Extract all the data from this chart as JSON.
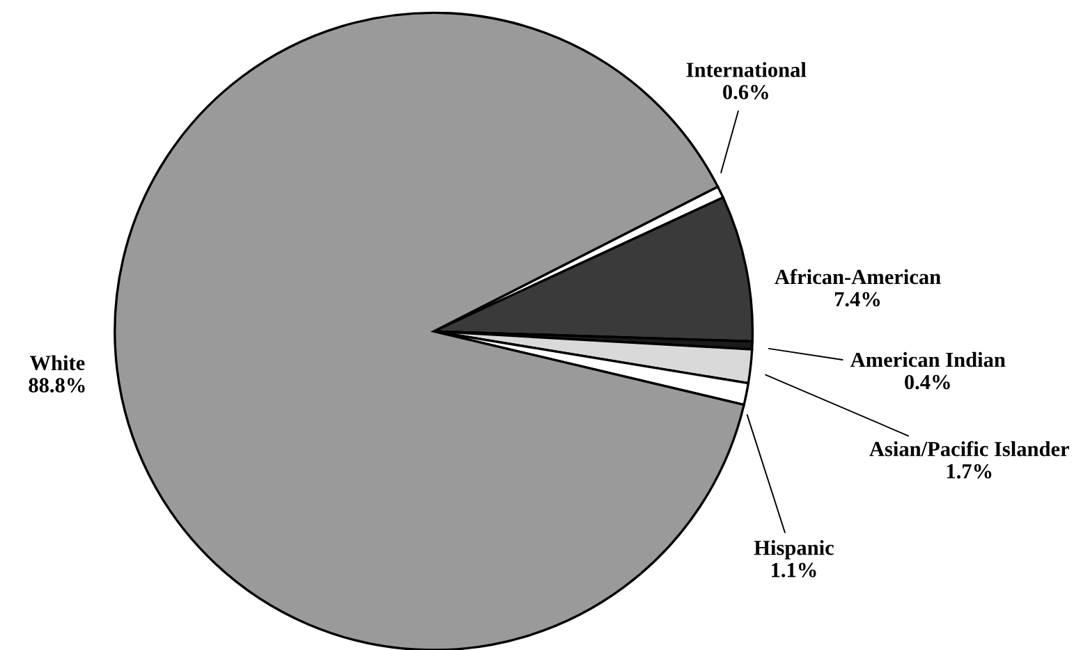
{
  "chart_data": {
    "type": "pie",
    "categories": [
      "International",
      "African-American",
      "American Indian",
      "Asian/Pacific Islander",
      "Hispanic",
      "White"
    ],
    "values": [
      0.6,
      7.4,
      0.4,
      1.7,
      1.1,
      88.8
    ],
    "colors": [
      "#ffffff",
      "#3a3a3a",
      "#1a1a1a",
      "#d9d9d9",
      "#ffffff",
      "#9a9a9a"
    ],
    "value_labels": [
      "0.6%",
      "7.4%",
      "0.4%",
      "1.7%",
      "1.1%",
      "88.8%"
    ],
    "legend": false
  }
}
